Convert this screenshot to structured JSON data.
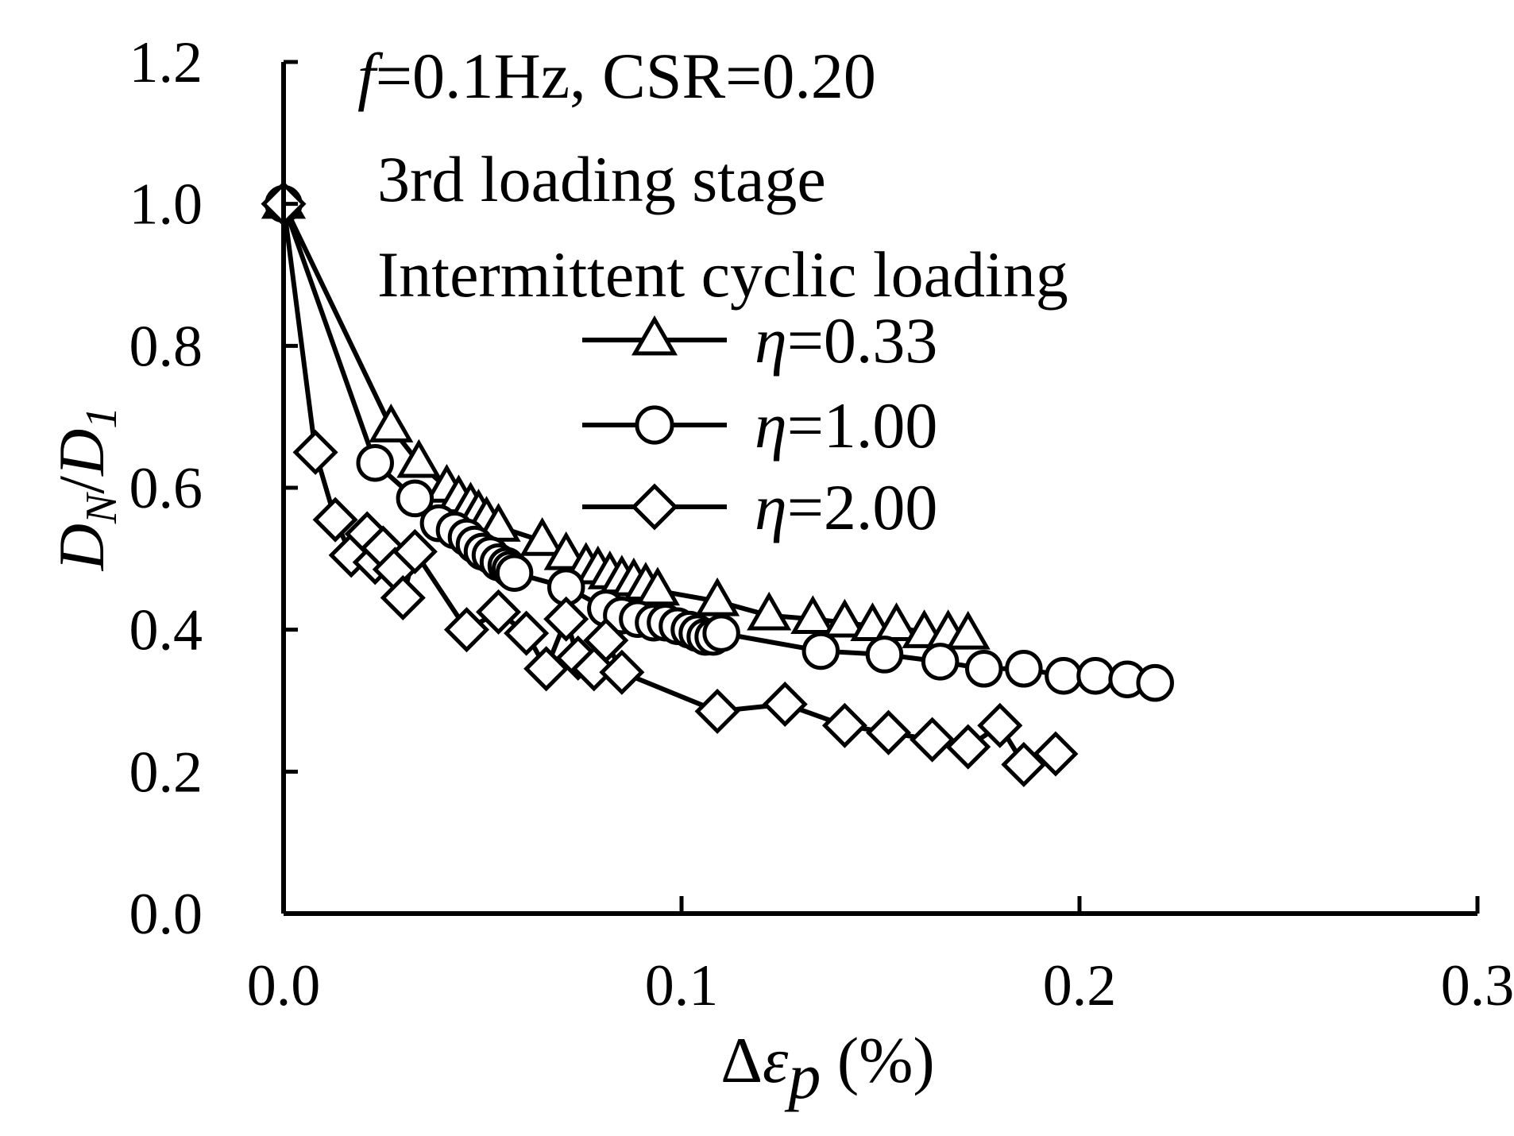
{
  "chart_data": {
    "type": "line",
    "title": "",
    "annotations": [
      "f=0.1Hz,  CSR=0.20",
      "3rd loading stage",
      "Intermittent cyclic loading"
    ],
    "xlabel": "Δεp (%)",
    "ylabel": "DN/D1",
    "xlim": [
      0.0,
      0.3
    ],
    "ylim": [
      0.0,
      1.2
    ],
    "xticks": [
      "0.0",
      "0.1",
      "0.2",
      "0.3"
    ],
    "yticks": [
      "0.0",
      "0.2",
      "0.4",
      "0.6",
      "0.8",
      "1.0",
      "1.2"
    ],
    "grid": false,
    "legend_position": "center",
    "series": [
      {
        "name": "η=0.33",
        "marker": "triangle",
        "x": [
          0.0,
          0.027,
          0.034,
          0.041,
          0.044,
          0.047,
          0.049,
          0.051,
          0.054,
          0.065,
          0.071,
          0.076,
          0.079,
          0.082,
          0.085,
          0.088,
          0.091,
          0.094,
          0.109,
          0.122,
          0.133,
          0.141,
          0.148,
          0.154,
          0.161,
          0.167,
          0.172
        ],
        "y": [
          1.0,
          0.685,
          0.635,
          0.6,
          0.585,
          0.575,
          0.565,
          0.555,
          0.545,
          0.525,
          0.505,
          0.49,
          0.485,
          0.478,
          0.472,
          0.468,
          0.462,
          0.455,
          0.44,
          0.42,
          0.415,
          0.41,
          0.405,
          0.405,
          0.395,
          0.395,
          0.393
        ]
      },
      {
        "name": "η=1.00",
        "marker": "circle",
        "x": [
          0.0,
          0.023,
          0.033,
          0.039,
          0.043,
          0.046,
          0.048,
          0.05,
          0.052,
          0.054,
          0.056,
          0.057,
          0.058,
          0.071,
          0.081,
          0.085,
          0.089,
          0.093,
          0.096,
          0.099,
          0.102,
          0.104,
          0.106,
          0.108,
          0.11,
          0.135,
          0.151,
          0.165,
          0.176,
          0.186,
          0.196,
          0.204,
          0.212,
          0.219
        ],
        "y": [
          1.0,
          0.635,
          0.585,
          0.55,
          0.54,
          0.53,
          0.52,
          0.51,
          0.505,
          0.495,
          0.49,
          0.485,
          0.48,
          0.46,
          0.43,
          0.42,
          0.415,
          0.41,
          0.41,
          0.405,
          0.4,
          0.395,
          0.39,
          0.39,
          0.395,
          0.37,
          0.365,
          0.355,
          0.345,
          0.345,
          0.335,
          0.335,
          0.33,
          0.325
        ]
      },
      {
        "name": "η=2.00",
        "marker": "diamond",
        "x": [
          0.0,
          0.008,
          0.013,
          0.017,
          0.021,
          0.023,
          0.025,
          0.028,
          0.03,
          0.033,
          0.046,
          0.054,
          0.061,
          0.066,
          0.071,
          0.074,
          0.078,
          0.081,
          0.085,
          0.109,
          0.126,
          0.141,
          0.152,
          0.163,
          0.172,
          0.18,
          0.186,
          0.194
        ],
        "y": [
          1.0,
          0.65,
          0.555,
          0.505,
          0.535,
          0.495,
          0.515,
          0.485,
          0.445,
          0.51,
          0.4,
          0.425,
          0.395,
          0.345,
          0.415,
          0.36,
          0.345,
          0.385,
          0.34,
          0.285,
          0.295,
          0.265,
          0.255,
          0.245,
          0.235,
          0.265,
          0.21,
          0.225
        ]
      }
    ]
  }
}
